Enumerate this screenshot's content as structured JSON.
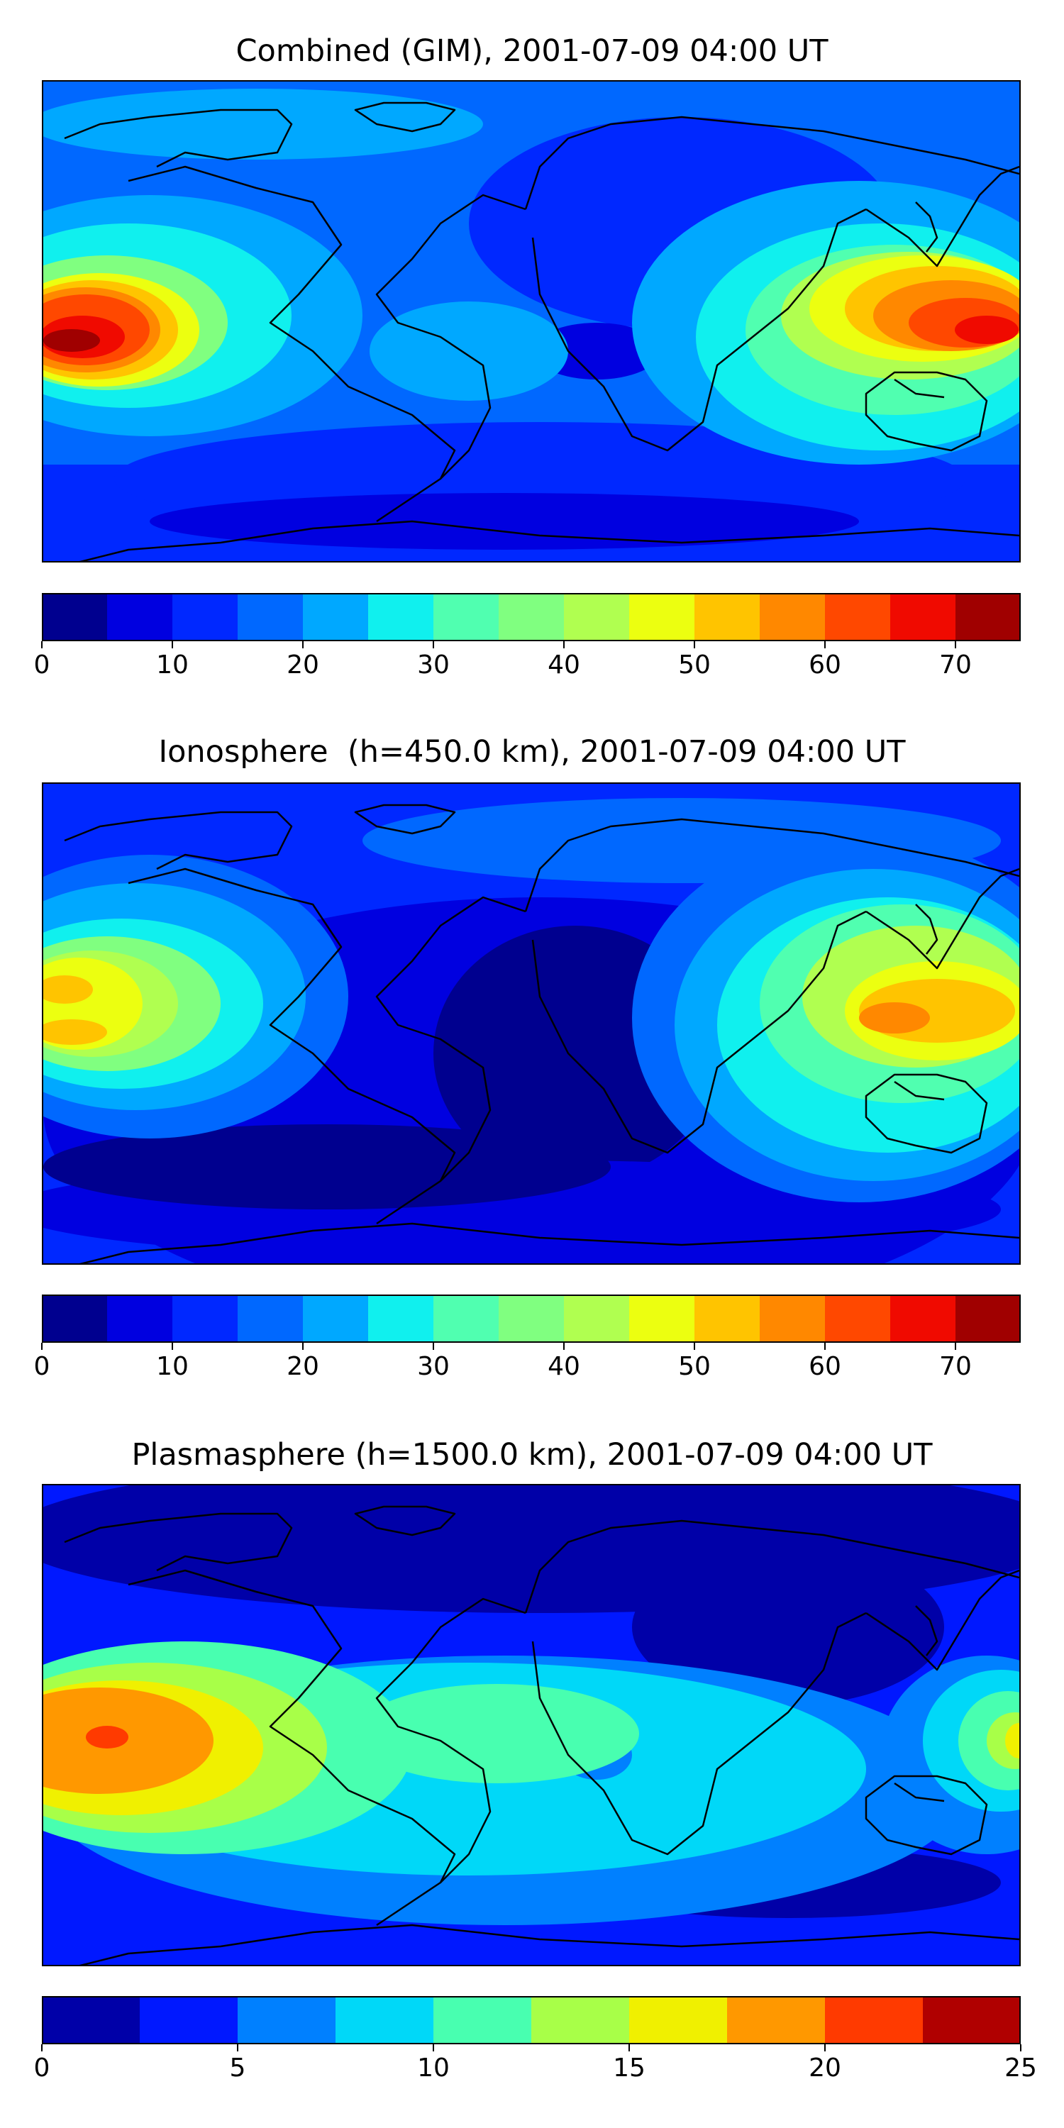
{
  "panels": [
    {
      "title": "Combined (GIM), 2001-07-09 04:00 UT",
      "colorbar": {
        "ticks": [
          "0",
          "10",
          "20",
          "30",
          "40",
          "50",
          "60",
          "70"
        ],
        "tick_values": [
          0,
          10,
          20,
          30,
          40,
          50,
          60,
          70
        ],
        "min": 0,
        "max": 75,
        "step": 5,
        "colors": [
          "#00008f",
          "#0000e0",
          "#0028ff",
          "#0068ff",
          "#00a8ff",
          "#10f0ee",
          "#50ffb0",
          "#80ff80",
          "#b0ff50",
          "#ecff10",
          "#ffc400",
          "#ff8800",
          "#ff4800",
          "#f00a00",
          "#a00000"
        ]
      }
    },
    {
      "title": "Ionosphere  (h=450.0 km), 2001-07-09 04:00 UT",
      "colorbar": {
        "ticks": [
          "0",
          "10",
          "20",
          "30",
          "40",
          "50",
          "60",
          "70"
        ],
        "tick_values": [
          0,
          10,
          20,
          30,
          40,
          50,
          60,
          70
        ],
        "min": 0,
        "max": 75,
        "step": 5,
        "colors": [
          "#00008f",
          "#0000e0",
          "#0028ff",
          "#0068ff",
          "#00a8ff",
          "#10f0ee",
          "#50ffb0",
          "#80ff80",
          "#b0ff50",
          "#ecff10",
          "#ffc400",
          "#ff8800",
          "#ff4800",
          "#f00a00",
          "#a00000"
        ]
      }
    },
    {
      "title": "Plasmasphere (h=1500.0 km), 2001-07-09 04:00 UT",
      "colorbar": {
        "ticks": [
          "0",
          "5",
          "10",
          "15",
          "20",
          "25"
        ],
        "tick_values": [
          0,
          5,
          10,
          15,
          20,
          25
        ],
        "min": 0,
        "max": 25,
        "step": 2.5,
        "colors": [
          "#0000a8",
          "#0018ff",
          "#0080ff",
          "#00d8f8",
          "#48ffb0",
          "#a8ff48",
          "#f0f000",
          "#ff9800",
          "#ff3a00",
          "#b00000"
        ]
      }
    }
  ]
}
